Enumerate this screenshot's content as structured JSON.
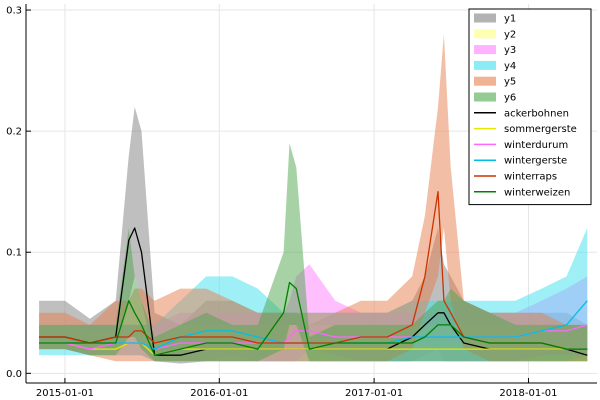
{
  "chart_data": {
    "type": "area",
    "grid": true,
    "legend_position": "top-right",
    "xlim": [
      "2014-10-01",
      "2018-06-12"
    ],
    "ylim": [
      -0.008,
      0.305
    ],
    "x_ticks": [
      {
        "date": "2015-01-01",
        "label": "2015-01-01"
      },
      {
        "date": "2016-01-01",
        "label": "2016-01-01"
      },
      {
        "date": "2017-01-01",
        "label": "2017-01-01"
      },
      {
        "date": "2018-01-01",
        "label": "2018-01-01"
      }
    ],
    "y_ticks": [
      {
        "value": 0.0,
        "label": "0.0"
      },
      {
        "value": 0.1,
        "label": "0.1"
      },
      {
        "value": 0.2,
        "label": "0.2"
      },
      {
        "value": 0.3,
        "label": "0.3"
      }
    ],
    "x": [
      "2014-11-01",
      "2015-01-01",
      "2015-03-01",
      "2015-05-01",
      "2015-06-01",
      "2015-06-15",
      "2015-07-01",
      "2015-08-01",
      "2015-10-01",
      "2015-12-01",
      "2016-02-01",
      "2016-04-01",
      "2016-06-01",
      "2016-06-15",
      "2016-07-01",
      "2016-08-01",
      "2016-10-01",
      "2016-12-01",
      "2017-02-01",
      "2017-04-01",
      "2017-05-01",
      "2017-06-01",
      "2017-06-15",
      "2017-07-01",
      "2017-08-01",
      "2017-10-01",
      "2017-12-01",
      "2018-02-01",
      "2018-04-01",
      "2018-05-20"
    ],
    "bands": [
      {
        "name": "y1",
        "color": "#808080",
        "lower": [
          0.02,
          0.02,
          0.015,
          0.02,
          0.06,
          0.08,
          0.06,
          0.01,
          0.008,
          0.01,
          0.015,
          0.01,
          0.01,
          0.01,
          0.01,
          0.01,
          0.01,
          0.01,
          0.01,
          0.01,
          0.015,
          0.02,
          0.01,
          0.01,
          0.01,
          0.01,
          0.01,
          0.01,
          0.01,
          0.01
        ],
        "upper": [
          0.06,
          0.06,
          0.045,
          0.06,
          0.18,
          0.22,
          0.2,
          0.05,
          0.04,
          0.06,
          0.06,
          0.05,
          0.05,
          0.05,
          0.05,
          0.04,
          0.05,
          0.05,
          0.05,
          0.06,
          0.08,
          0.12,
          0.09,
          0.08,
          0.06,
          0.05,
          0.05,
          0.05,
          0.05,
          0.04
        ]
      },
      {
        "name": "y2",
        "color": "#ffff80",
        "lower": [
          0.02,
          0.02,
          0.015,
          0.015,
          0.015,
          0.015,
          0.015,
          0.01,
          0.01,
          0.01,
          0.01,
          0.01,
          0.01,
          0.01,
          0.01,
          0.01,
          0.01,
          0.01,
          0.01,
          0.01,
          0.01,
          0.01,
          0.01,
          0.01,
          0.01,
          0.01,
          0.01,
          0.01,
          0.01,
          0.01
        ],
        "upper": [
          0.04,
          0.04,
          0.035,
          0.035,
          0.04,
          0.04,
          0.04,
          0.03,
          0.04,
          0.04,
          0.04,
          0.04,
          0.04,
          0.04,
          0.04,
          0.04,
          0.04,
          0.04,
          0.04,
          0.04,
          0.04,
          0.04,
          0.04,
          0.04,
          0.04,
          0.04,
          0.04,
          0.04,
          0.04,
          0.04
        ]
      },
      {
        "name": "y3",
        "color": "#ff80ff",
        "lower": [
          0.02,
          0.02,
          0.015,
          0.015,
          0.015,
          0.015,
          0.015,
          0.01,
          0.01,
          0.01,
          0.01,
          0.01,
          0.01,
          0.01,
          0.01,
          0.02,
          0.015,
          0.01,
          0.01,
          0.01,
          0.01,
          0.01,
          0.01,
          0.01,
          0.01,
          0.01,
          0.01,
          0.015,
          0.015,
          0.015
        ],
        "upper": [
          0.04,
          0.04,
          0.04,
          0.04,
          0.04,
          0.04,
          0.04,
          0.04,
          0.05,
          0.05,
          0.05,
          0.05,
          0.05,
          0.06,
          0.08,
          0.09,
          0.06,
          0.05,
          0.05,
          0.05,
          0.05,
          0.05,
          0.05,
          0.06,
          0.06,
          0.05,
          0.05,
          0.06,
          0.07,
          0.08
        ]
      },
      {
        "name": "y4",
        "color": "#40e0f0",
        "lower": [
          0.015,
          0.015,
          0.015,
          0.015,
          0.015,
          0.015,
          0.015,
          0.01,
          0.01,
          0.01,
          0.01,
          0.01,
          0.01,
          0.01,
          0.01,
          0.01,
          0.01,
          0.01,
          0.01,
          0.01,
          0.01,
          0.01,
          0.01,
          0.01,
          0.01,
          0.01,
          0.01,
          0.01,
          0.01,
          0.015
        ],
        "upper": [
          0.04,
          0.04,
          0.04,
          0.04,
          0.04,
          0.04,
          0.04,
          0.04,
          0.06,
          0.08,
          0.08,
          0.07,
          0.05,
          0.05,
          0.05,
          0.05,
          0.05,
          0.05,
          0.05,
          0.06,
          0.06,
          0.06,
          0.06,
          0.06,
          0.06,
          0.06,
          0.06,
          0.07,
          0.08,
          0.12
        ]
      },
      {
        "name": "y5",
        "color": "#e6804d",
        "lower": [
          0.02,
          0.02,
          0.015,
          0.01,
          0.01,
          0.01,
          0.01,
          0.01,
          0.01,
          0.01,
          0.01,
          0.01,
          0.01,
          0.01,
          0.01,
          0.01,
          0.01,
          0.01,
          0.01,
          0.02,
          0.05,
          0.08,
          0.12,
          0.06,
          0.02,
          0.01,
          0.01,
          0.01,
          0.01,
          0.01
        ],
        "upper": [
          0.05,
          0.05,
          0.04,
          0.06,
          0.06,
          0.07,
          0.07,
          0.06,
          0.07,
          0.07,
          0.06,
          0.05,
          0.05,
          0.05,
          0.05,
          0.05,
          0.05,
          0.06,
          0.06,
          0.08,
          0.13,
          0.22,
          0.28,
          0.17,
          0.06,
          0.05,
          0.05,
          0.05,
          0.04,
          0.04
        ]
      },
      {
        "name": "y6",
        "color": "#4da64d",
        "lower": [
          0.02,
          0.02,
          0.015,
          0.015,
          0.03,
          0.03,
          0.02,
          0.01,
          0.01,
          0.01,
          0.01,
          0.01,
          0.02,
          0.04,
          0.04,
          0.01,
          0.01,
          0.01,
          0.01,
          0.01,
          0.01,
          0.01,
          0.01,
          0.01,
          0.01,
          0.01,
          0.01,
          0.01,
          0.01,
          0.01
        ],
        "upper": [
          0.04,
          0.04,
          0.04,
          0.04,
          0.12,
          0.08,
          0.06,
          0.03,
          0.04,
          0.05,
          0.04,
          0.04,
          0.1,
          0.19,
          0.17,
          0.03,
          0.04,
          0.04,
          0.04,
          0.04,
          0.05,
          0.06,
          0.06,
          0.07,
          0.06,
          0.05,
          0.04,
          0.04,
          0.04,
          0.04
        ]
      }
    ],
    "series": [
      {
        "name": "ackerbohnen",
        "color": "#000000",
        "values": [
          0.03,
          0.03,
          0.025,
          0.03,
          0.11,
          0.12,
          0.1,
          0.015,
          0.015,
          0.02,
          0.02,
          0.02,
          0.02,
          0.02,
          0.02,
          0.02,
          0.02,
          0.02,
          0.02,
          0.03,
          0.04,
          0.05,
          0.05,
          0.04,
          0.025,
          0.02,
          0.02,
          0.02,
          0.02,
          0.015
        ]
      },
      {
        "name": "sommergerste",
        "color": "#e6e600",
        "values": [
          0.025,
          0.025,
          0.02,
          0.02,
          0.025,
          0.025,
          0.025,
          0.015,
          0.02,
          0.02,
          0.02,
          0.02,
          0.02,
          0.02,
          0.02,
          0.02,
          0.02,
          0.02,
          0.02,
          0.02,
          0.02,
          0.02,
          0.02,
          0.02,
          0.02,
          0.02,
          0.02,
          0.02,
          0.02,
          0.02
        ]
      },
      {
        "name": "winterdurum",
        "color": "#ff66ff",
        "values": [
          0.025,
          0.025,
          0.02,
          0.025,
          0.025,
          0.025,
          0.025,
          0.02,
          0.025,
          0.025,
          0.025,
          0.025,
          0.025,
          0.03,
          0.035,
          0.035,
          0.03,
          0.03,
          0.03,
          0.03,
          0.03,
          0.03,
          0.03,
          0.03,
          0.03,
          0.03,
          0.03,
          0.035,
          0.035,
          0.04
        ]
      },
      {
        "name": "wintergerste",
        "color": "#00bfe6",
        "values": [
          0.025,
          0.025,
          0.025,
          0.025,
          0.025,
          0.025,
          0.025,
          0.02,
          0.03,
          0.035,
          0.035,
          0.03,
          0.025,
          0.025,
          0.025,
          0.025,
          0.025,
          0.025,
          0.025,
          0.03,
          0.03,
          0.03,
          0.03,
          0.03,
          0.03,
          0.03,
          0.03,
          0.035,
          0.04,
          0.06
        ]
      },
      {
        "name": "winterraps",
        "color": "#cc3300",
        "values": [
          0.03,
          0.03,
          0.025,
          0.03,
          0.03,
          0.035,
          0.035,
          0.025,
          0.03,
          0.03,
          0.03,
          0.025,
          0.025,
          0.025,
          0.025,
          0.025,
          0.025,
          0.03,
          0.03,
          0.04,
          0.08,
          0.15,
          0.06,
          0.05,
          0.03,
          0.025,
          0.025,
          0.025,
          0.02,
          0.02
        ]
      },
      {
        "name": "winterweizen",
        "color": "#008000",
        "values": [
          0.025,
          0.025,
          0.025,
          0.025,
          0.06,
          0.05,
          0.04,
          0.015,
          0.02,
          0.025,
          0.025,
          0.02,
          0.05,
          0.075,
          0.07,
          0.02,
          0.025,
          0.025,
          0.025,
          0.025,
          0.03,
          0.04,
          0.04,
          0.04,
          0.03,
          0.025,
          0.025,
          0.025,
          0.02,
          0.02
        ]
      }
    ]
  }
}
